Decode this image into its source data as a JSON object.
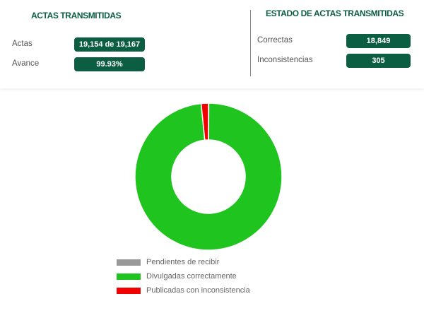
{
  "left": {
    "title": "ACTAS TRANSMITIDAS",
    "rows": [
      {
        "label": "Actas",
        "value": "19,154 de 19,167"
      },
      {
        "label": "Avance",
        "value": "99.93%"
      }
    ]
  },
  "right": {
    "title": "ESTADO DE ACTAS TRANSMITIDAS",
    "rows": [
      {
        "label": "Correctas",
        "value": "18,849"
      },
      {
        "label": "Inconsistencias",
        "value": "305"
      }
    ]
  },
  "colors": {
    "accent": "#0b5e42"
  },
  "chart_data": {
    "type": "pie",
    "donut": true,
    "categories": [
      "Pendientes de recibir",
      "Divulgadas correctamente",
      "Publicadas con inconsistencia"
    ],
    "values": [
      13,
      18849,
      305
    ],
    "colors": [
      "#999999",
      "#1fc41f",
      "#f00000"
    ],
    "legend": "bottom"
  }
}
